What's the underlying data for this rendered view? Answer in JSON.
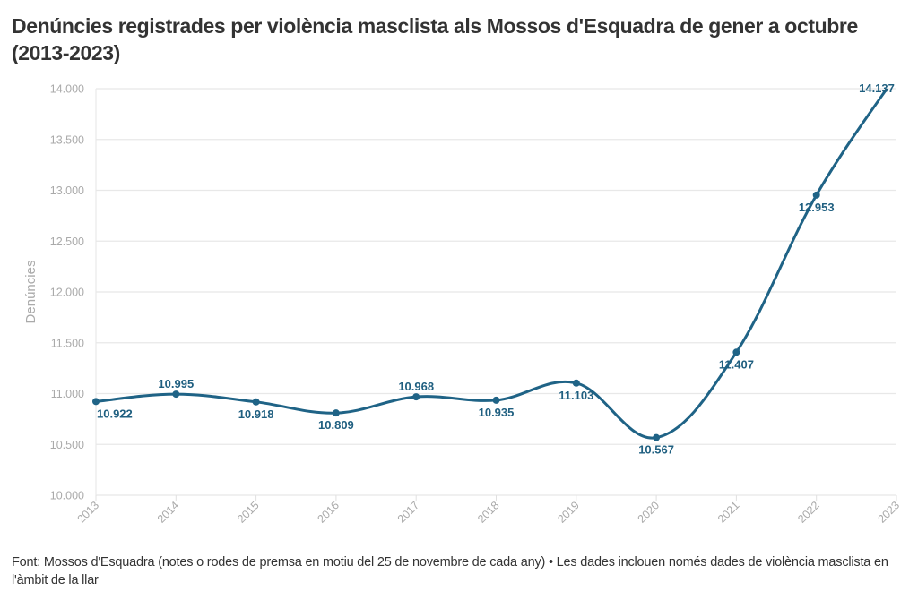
{
  "title": "Denúncies registrades per violència masclista als Mossos d'Esquadra de gener a octubre (2013-2023)",
  "footer": "Font: Mossos d'Esquadra (notes o rodes de premsa en motiu del 25 de novembre de cada any) • Les dades inclouen només dades de violència masclista en l'àmbit de la llar",
  "chart_data": {
    "type": "line",
    "title": "Denúncies registrades per violència masclista als Mossos d'Esquadra de gener a octubre (2013-2023)",
    "xlabel": "",
    "ylabel": "Denúncies",
    "x": [
      "2013",
      "2014",
      "2015",
      "2016",
      "2017",
      "2018",
      "2019",
      "2020",
      "2021",
      "2022",
      "2023"
    ],
    "series": [
      {
        "name": "Denúncies",
        "color": "#1f6386",
        "values": [
          10922,
          10995,
          10918,
          10809,
          10968,
          10935,
          11103,
          10567,
          11407,
          12953,
          14137
        ],
        "labels": [
          "10.922",
          "10.995",
          "10.918",
          "10.809",
          "10.968",
          "10.935",
          "11.103",
          "10.567",
          "11.407",
          "12.953",
          "14.137"
        ]
      }
    ],
    "ylim": [
      10000,
      14000
    ],
    "yticks": [
      10000,
      10500,
      11000,
      11500,
      12000,
      12500,
      13000,
      13500,
      14000
    ],
    "ytick_labels": [
      "10.000",
      "10.500",
      "11.000",
      "11.500",
      "12.000",
      "12.500",
      "13.000",
      "13.500",
      "14.000"
    ],
    "grid": true,
    "smooth": true,
    "legend": "none"
  }
}
